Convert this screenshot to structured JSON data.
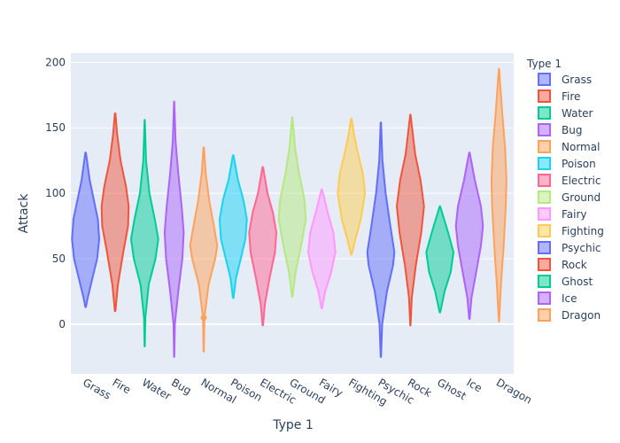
{
  "chart_data": {
    "type": "violin",
    "xlabel": "Type 1",
    "ylabel": "Attack",
    "ylim": [
      -38,
      207
    ],
    "yticks": [
      0,
      50,
      100,
      150,
      200
    ],
    "grid": true,
    "legend": {
      "title": "Type 1",
      "placement": "right"
    },
    "categories": [
      "Grass",
      "Fire",
      "Water",
      "Bug",
      "Normal",
      "Poison",
      "Electric",
      "Ground",
      "Fairy",
      "Fighting",
      "Psychic",
      "Rock",
      "Ghost",
      "Ice",
      "Dragon"
    ],
    "series": [
      {
        "name": "Grass",
        "color": "#636efa",
        "min": 13,
        "max": 131,
        "profile": [
          [
            13,
            0.02
          ],
          [
            20,
            0.15
          ],
          [
            35,
            0.5
          ],
          [
            50,
            0.85
          ],
          [
            65,
            1.0
          ],
          [
            80,
            0.9
          ],
          [
            95,
            0.6
          ],
          [
            110,
            0.3
          ],
          [
            131,
            0.02
          ]
        ]
      },
      {
        "name": "Fire",
        "color": "#ef553b",
        "min": 10,
        "max": 161,
        "profile": [
          [
            10,
            0.02
          ],
          [
            30,
            0.2
          ],
          [
            55,
            0.6
          ],
          [
            75,
            0.95
          ],
          [
            90,
            1.0
          ],
          [
            105,
            0.8
          ],
          [
            125,
            0.4
          ],
          [
            145,
            0.15
          ],
          [
            161,
            0.02
          ]
        ]
      },
      {
        "name": "Water",
        "color": "#00cc96",
        "min": -17,
        "max": 156,
        "profile": [
          [
            -17,
            0.01
          ],
          [
            5,
            0.05
          ],
          [
            30,
            0.3
          ],
          [
            50,
            0.8
          ],
          [
            65,
            1.0
          ],
          [
            80,
            0.75
          ],
          [
            100,
            0.35
          ],
          [
            125,
            0.1
          ],
          [
            156,
            0.01
          ]
        ]
      },
      {
        "name": "Bug",
        "color": "#ab63fa",
        "min": -25,
        "max": 170,
        "profile": [
          [
            -25,
            0.01
          ],
          [
            0,
            0.05
          ],
          [
            25,
            0.3
          ],
          [
            50,
            0.6
          ],
          [
            70,
            0.7
          ],
          [
            90,
            0.55
          ],
          [
            115,
            0.3
          ],
          [
            140,
            0.1
          ],
          [
            170,
            0.01
          ]
        ]
      },
      {
        "name": "Normal",
        "color": "#ffa15a",
        "min": -21,
        "max": 135,
        "profile": [
          [
            -21,
            0.01
          ],
          [
            5,
            0.05
          ],
          [
            30,
            0.35
          ],
          [
            50,
            0.85
          ],
          [
            60,
            1.0
          ],
          [
            75,
            0.75
          ],
          [
            95,
            0.4
          ],
          [
            115,
            0.15
          ],
          [
            135,
            0.02
          ]
        ]
      },
      {
        "name": "Poison",
        "color": "#19d3f3",
        "min": 20,
        "max": 129,
        "profile": [
          [
            20,
            0.02
          ],
          [
            35,
            0.2
          ],
          [
            50,
            0.55
          ],
          [
            65,
            0.9
          ],
          [
            80,
            1.0
          ],
          [
            95,
            0.75
          ],
          [
            110,
            0.35
          ],
          [
            129,
            0.02
          ]
        ]
      },
      {
        "name": "Electric",
        "color": "#ff6692",
        "min": -1,
        "max": 120,
        "profile": [
          [
            -1,
            0.02
          ],
          [
            15,
            0.15
          ],
          [
            35,
            0.5
          ],
          [
            55,
            0.9
          ],
          [
            70,
            1.0
          ],
          [
            85,
            0.75
          ],
          [
            100,
            0.35
          ],
          [
            120,
            0.02
          ]
        ]
      },
      {
        "name": "Ground",
        "color": "#b6e880",
        "min": 21,
        "max": 158,
        "profile": [
          [
            21,
            0.02
          ],
          [
            40,
            0.25
          ],
          [
            60,
            0.65
          ],
          [
            80,
            1.0
          ],
          [
            95,
            0.9
          ],
          [
            115,
            0.5
          ],
          [
            135,
            0.2
          ],
          [
            158,
            0.01
          ]
        ]
      },
      {
        "name": "Fairy",
        "color": "#ff97ff",
        "min": 12,
        "max": 103,
        "profile": [
          [
            12,
            0.02
          ],
          [
            25,
            0.25
          ],
          [
            40,
            0.7
          ],
          [
            55,
            1.0
          ],
          [
            70,
            0.85
          ],
          [
            85,
            0.45
          ],
          [
            103,
            0.02
          ]
        ]
      },
      {
        "name": "Fighting",
        "color": "#fecb52",
        "min": 53,
        "max": 157,
        "profile": [
          [
            53,
            0.02
          ],
          [
            65,
            0.3
          ],
          [
            80,
            0.7
          ],
          [
            100,
            1.0
          ],
          [
            115,
            0.85
          ],
          [
            130,
            0.5
          ],
          [
            145,
            0.2
          ],
          [
            157,
            0.02
          ]
        ]
      },
      {
        "name": "Psychic",
        "color": "#636efa",
        "min": -25,
        "max": 154,
        "profile": [
          [
            -25,
            0.01
          ],
          [
            0,
            0.1
          ],
          [
            25,
            0.45
          ],
          [
            45,
            0.9
          ],
          [
            55,
            1.0
          ],
          [
            75,
            0.7
          ],
          [
            100,
            0.35
          ],
          [
            125,
            0.12
          ],
          [
            154,
            0.01
          ]
        ]
      },
      {
        "name": "Rock",
        "color": "#ef553b",
        "min": -1,
        "max": 160,
        "profile": [
          [
            -1,
            0.01
          ],
          [
            20,
            0.1
          ],
          [
            45,
            0.4
          ],
          [
            70,
            0.8
          ],
          [
            90,
            1.0
          ],
          [
            110,
            0.75
          ],
          [
            130,
            0.35
          ],
          [
            160,
            0.01
          ]
        ]
      },
      {
        "name": "Ghost",
        "color": "#00cc96",
        "min": 9,
        "max": 90,
        "profile": [
          [
            9,
            0.02
          ],
          [
            25,
            0.35
          ],
          [
            40,
            0.8
          ],
          [
            55,
            1.0
          ],
          [
            70,
            0.6
          ],
          [
            90,
            0.02
          ]
        ]
      },
      {
        "name": "Ice",
        "color": "#ab63fa",
        "min": 4,
        "max": 131,
        "profile": [
          [
            4,
            0.02
          ],
          [
            20,
            0.15
          ],
          [
            40,
            0.5
          ],
          [
            60,
            0.85
          ],
          [
            75,
            1.0
          ],
          [
            90,
            0.85
          ],
          [
            110,
            0.4
          ],
          [
            131,
            0.02
          ]
        ]
      },
      {
        "name": "Dragon",
        "color": "#ffa15a",
        "min": 2,
        "max": 195,
        "profile": [
          [
            2,
            0.01
          ],
          [
            30,
            0.15
          ],
          [
            60,
            0.35
          ],
          [
            90,
            0.5
          ],
          [
            110,
            0.55
          ],
          [
            135,
            0.45
          ],
          [
            160,
            0.25
          ],
          [
            195,
            0.01
          ]
        ]
      }
    ],
    "outliers": [
      {
        "category": "Normal",
        "y": 5
      }
    ]
  }
}
